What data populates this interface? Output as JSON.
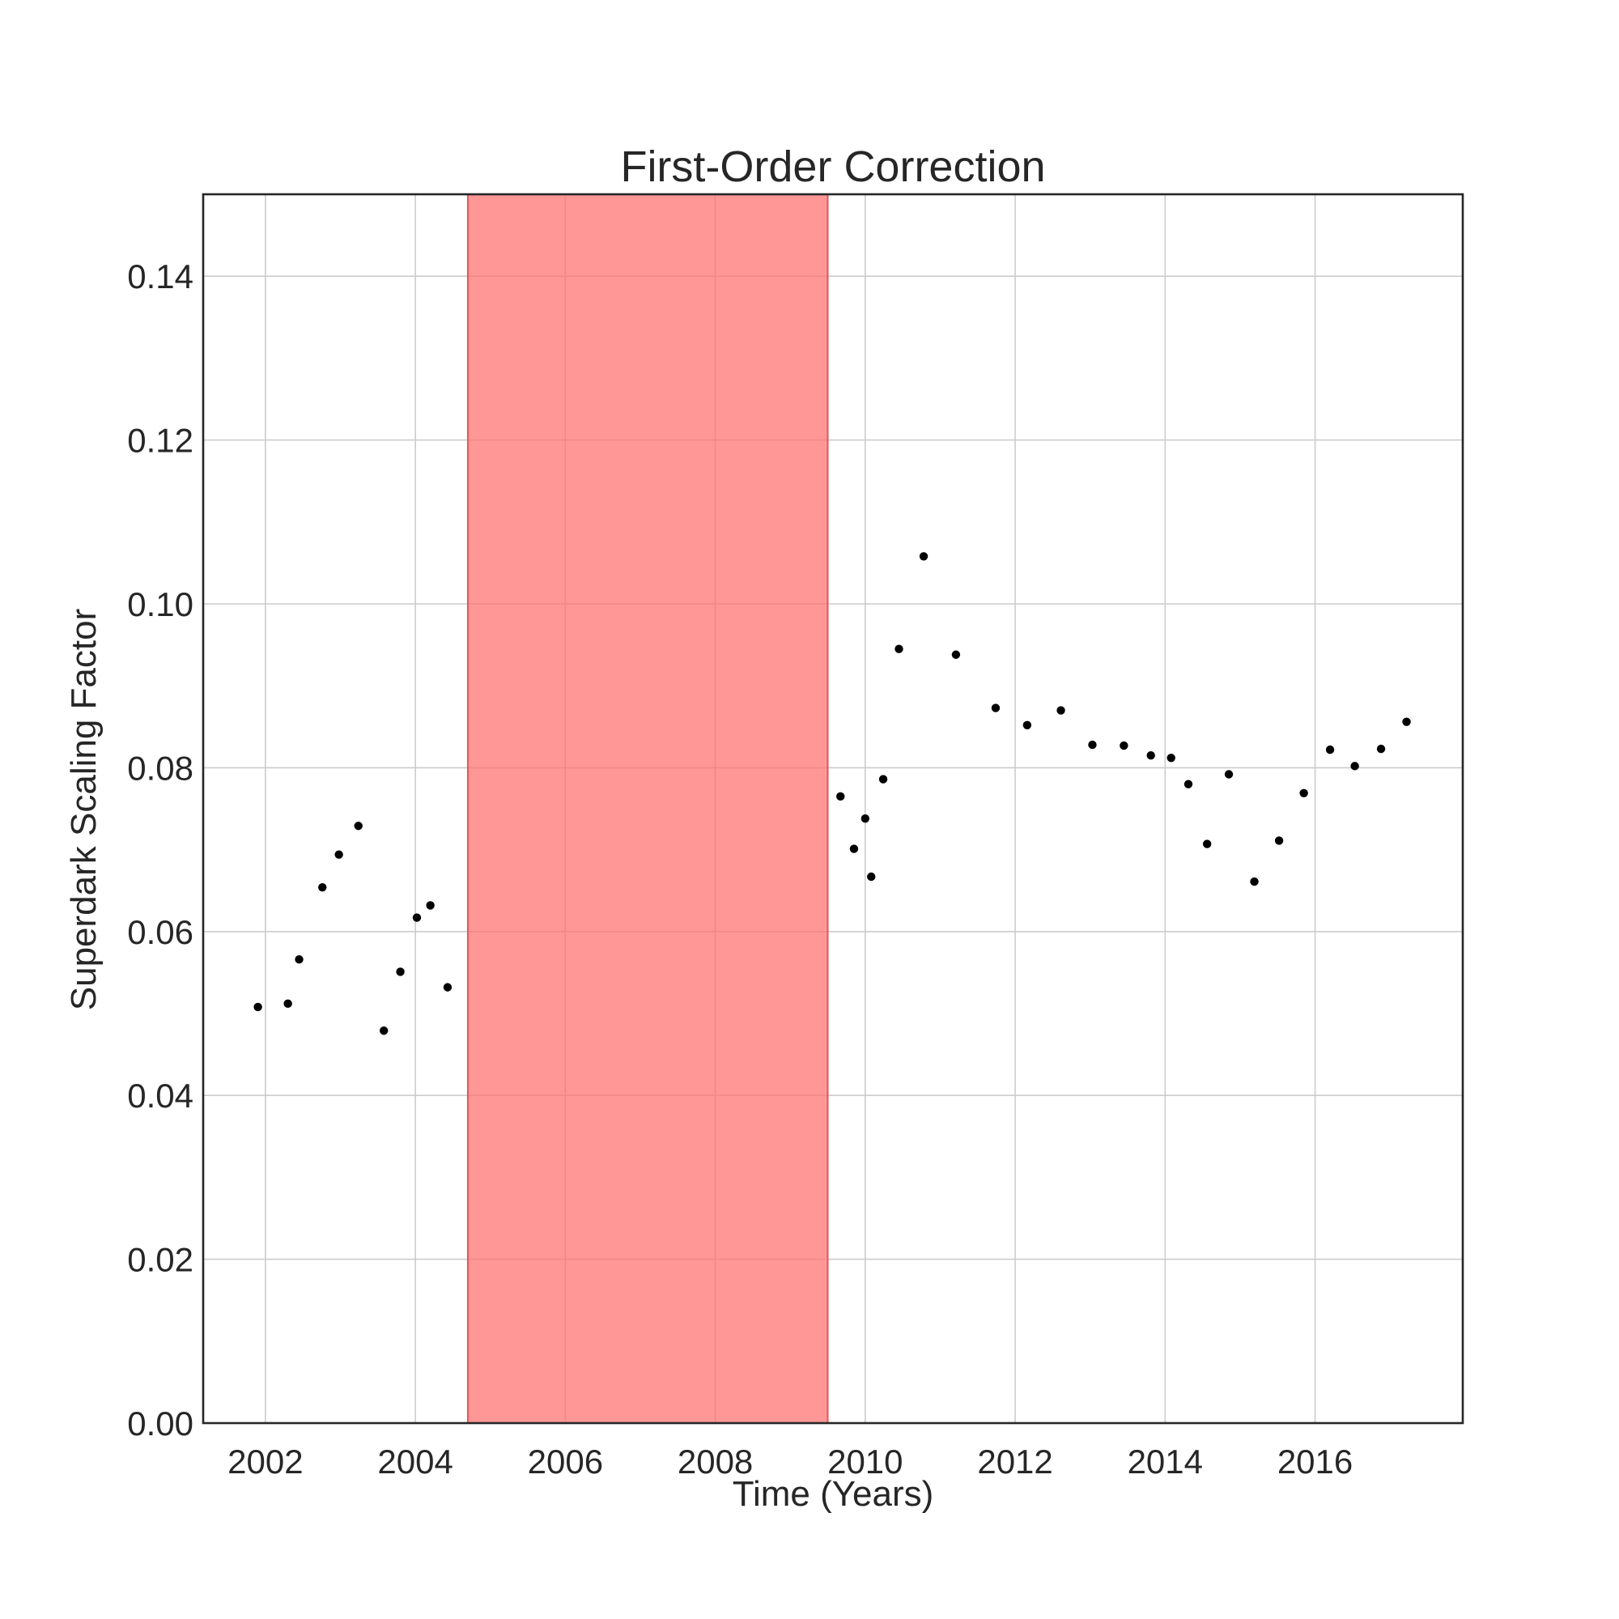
{
  "chart_data": {
    "type": "scatter",
    "title": "First-Order Correction",
    "xlabel": "Time (Years)",
    "ylabel": "Superdark Scaling Factor",
    "xlim": [
      2001.17,
      2017.97
    ],
    "ylim": [
      0.0,
      0.15
    ],
    "xticks": [
      2002,
      2004,
      2006,
      2008,
      2010,
      2012,
      2014,
      2016
    ],
    "yticks": [
      0.0,
      0.02,
      0.04,
      0.06,
      0.08,
      0.1,
      0.12,
      0.14
    ],
    "ytick_labels": [
      "0.00",
      "0.02",
      "0.04",
      "0.06",
      "0.08",
      "0.10",
      "0.12",
      "0.14"
    ],
    "grid": true,
    "shaded_region": {
      "x_start": 2004.7,
      "x_end": 2009.5,
      "color": "#ff6f6f"
    },
    "marker_color": "#000000",
    "points": [
      {
        "x": 2001.9,
        "y": 0.0508
      },
      {
        "x": 2002.3,
        "y": 0.0512
      },
      {
        "x": 2002.45,
        "y": 0.0566
      },
      {
        "x": 2002.76,
        "y": 0.0654
      },
      {
        "x": 2002.98,
        "y": 0.0694
      },
      {
        "x": 2003.24,
        "y": 0.0729
      },
      {
        "x": 2003.58,
        "y": 0.0479
      },
      {
        "x": 2003.8,
        "y": 0.0551
      },
      {
        "x": 2004.02,
        "y": 0.0617
      },
      {
        "x": 2004.2,
        "y": 0.0632
      },
      {
        "x": 2004.43,
        "y": 0.0532
      },
      {
        "x": 2009.67,
        "y": 0.0765
      },
      {
        "x": 2009.85,
        "y": 0.0701
      },
      {
        "x": 2010.0,
        "y": 0.0738
      },
      {
        "x": 2010.08,
        "y": 0.0667
      },
      {
        "x": 2010.24,
        "y": 0.0786
      },
      {
        "x": 2010.45,
        "y": 0.0945
      },
      {
        "x": 2010.78,
        "y": 0.1058
      },
      {
        "x": 2011.21,
        "y": 0.0938
      },
      {
        "x": 2011.74,
        "y": 0.0873
      },
      {
        "x": 2012.16,
        "y": 0.0852
      },
      {
        "x": 2012.61,
        "y": 0.087
      },
      {
        "x": 2013.03,
        "y": 0.0828
      },
      {
        "x": 2013.45,
        "y": 0.0827
      },
      {
        "x": 2013.81,
        "y": 0.0815
      },
      {
        "x": 2014.08,
        "y": 0.0812
      },
      {
        "x": 2014.31,
        "y": 0.078
      },
      {
        "x": 2014.56,
        "y": 0.0707
      },
      {
        "x": 2014.85,
        "y": 0.0792
      },
      {
        "x": 2015.19,
        "y": 0.0661
      },
      {
        "x": 2015.52,
        "y": 0.0711
      },
      {
        "x": 2015.85,
        "y": 0.0769
      },
      {
        "x": 2016.2,
        "y": 0.0822
      },
      {
        "x": 2016.53,
        "y": 0.0802
      },
      {
        "x": 2016.88,
        "y": 0.0823
      },
      {
        "x": 2017.22,
        "y": 0.0856
      }
    ]
  }
}
